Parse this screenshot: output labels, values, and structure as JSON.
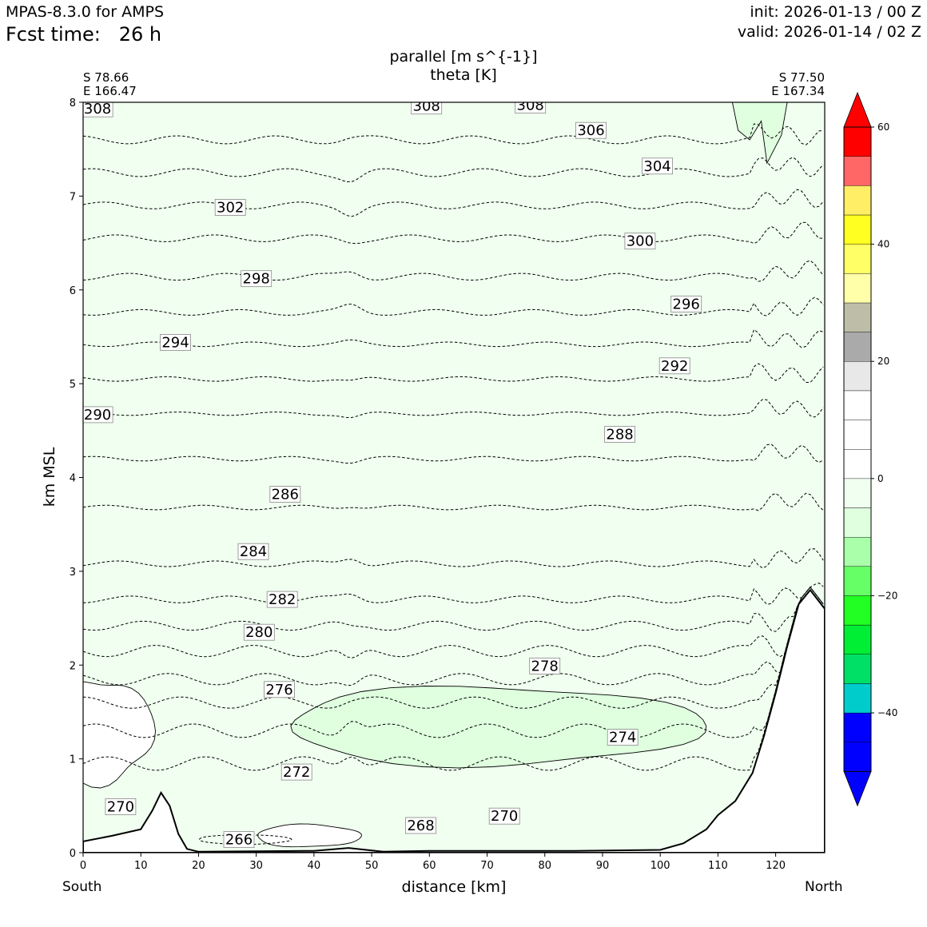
{
  "header": {
    "model": "MPAS-8.3.0 for AMPS",
    "fcst_label": "Fcst time:",
    "fcst_value": "26 h",
    "init": "init: 2026-01-13 / 00 Z",
    "valid": "valid: 2026-01-14 / 02 Z"
  },
  "chart_data": {
    "type": "cross-section",
    "title": "parallel [m s^{-1}]",
    "subtitle": "theta [K]",
    "xlabel": "distance [km]",
    "ylabel": "km MSL",
    "xlim": [
      0,
      128.5
    ],
    "ylim": [
      0,
      8
    ],
    "xticks": [
      0,
      10,
      20,
      30,
      40,
      50,
      60,
      70,
      80,
      90,
      100,
      110,
      120
    ],
    "yticks": [
      0,
      1,
      2,
      3,
      4,
      5,
      6,
      7,
      8
    ],
    "left_end": {
      "lat": "S 78.66",
      "lon": "E 166.47",
      "direction": "South"
    },
    "right_end": {
      "lat": "S 77.50",
      "lon": "E 167.34",
      "direction": "North"
    },
    "filled_field": {
      "name": "parallel wind",
      "units": "m s^-1",
      "background_level_color": "#f0fff0",
      "notes": "Mostly -5 to 0 m/s; pockets of -10 to -5 m/s near 60-110 km at 1-1.8 km and near top-right"
    },
    "colorbar": {
      "levels": [
        -55,
        -50,
        -45,
        -40,
        -35,
        -30,
        -25,
        -20,
        -15,
        -10,
        -5,
        0,
        5,
        10,
        15,
        20,
        25,
        30,
        35,
        40,
        45,
        50,
        55,
        60
      ],
      "colors": [
        "#0000ff",
        "#0000ff",
        "#00cccc",
        "#00e066",
        "#00ee33",
        "#22ff22",
        "#66ff66",
        "#aaffaa",
        "#dfffdf",
        "#f0fff0",
        "#ffffff",
        "#ffffff",
        "#ffffff",
        "#e8e8e8",
        "#aaaaaa",
        "#bebea8",
        "#ffffaa",
        "#ffff66",
        "#ffff22",
        "#ffee66",
        "#ff6666",
        "#ff0000"
      ],
      "tick_values": [
        60,
        40,
        20,
        0,
        -20,
        -40
      ],
      "tick_labels": [
        "60",
        "40",
        "20",
        "0",
        "−20",
        "−40"
      ],
      "extend_top_color": "#ff0000",
      "extend_bottom_color": "#0000ff"
    },
    "terrain_km": [
      [
        0,
        0.12
      ],
      [
        5,
        0.18
      ],
      [
        10,
        0.25
      ],
      [
        12,
        0.45
      ],
      [
        13.5,
        0.64
      ],
      [
        15,
        0.5
      ],
      [
        16.5,
        0.2
      ],
      [
        18,
        0.04
      ],
      [
        20,
        0.01
      ],
      [
        40,
        0.02
      ],
      [
        46,
        0.05
      ],
      [
        52,
        0.01
      ],
      [
        60,
        0.02
      ],
      [
        85,
        0.02
      ],
      [
        100,
        0.03
      ],
      [
        104,
        0.1
      ],
      [
        108,
        0.25
      ],
      [
        110,
        0.4
      ],
      [
        113,
        0.55
      ],
      [
        116,
        0.85
      ],
      [
        118,
        1.25
      ],
      [
        120,
        1.7
      ],
      [
        122,
        2.2
      ],
      [
        124,
        2.65
      ],
      [
        126,
        2.8
      ],
      [
        128.5,
        2.6
      ]
    ],
    "theta_levels": [
      266,
      268,
      270,
      272,
      274,
      276,
      278,
      280,
      282,
      284,
      286,
      288,
      290,
      292,
      294,
      296,
      298,
      300,
      302,
      304,
      306,
      308
    ],
    "theta_contours": [
      {
        "z": 0.95,
        "amp": 0.12
      },
      {
        "z": 1.3,
        "amp": 0.12
      },
      {
        "z": 1.6,
        "amp": 0.1
      },
      {
        "z": 1.85,
        "amp": 0.1
      },
      {
        "z": 2.15,
        "amp": 0.1
      },
      {
        "z": 2.42,
        "amp": 0.08
      },
      {
        "z": 2.7,
        "amp": 0.06
      },
      {
        "z": 3.08,
        "amp": 0.05
      },
      {
        "z": 3.68,
        "amp": 0.04
      },
      {
        "z": 4.2,
        "amp": 0.04
      },
      {
        "z": 4.68,
        "amp": 0.03
      },
      {
        "z": 5.05,
        "amp": 0.04
      },
      {
        "z": 5.42,
        "amp": 0.04
      },
      {
        "z": 5.76,
        "amp": 0.05
      },
      {
        "z": 6.14,
        "amp": 0.06
      },
      {
        "z": 6.55,
        "amp": 0.06
      },
      {
        "z": 6.9,
        "amp": 0.06
      },
      {
        "z": 7.25,
        "amp": 0.07
      },
      {
        "z": 7.6,
        "amp": 0.07
      }
    ],
    "contour_labels": [
      {
        "text": "308",
        "x": 2.5,
        "z": 7.93
      },
      {
        "text": "308",
        "x": 59.5,
        "z": 7.96
      },
      {
        "text": "308",
        "x": 77.5,
        "z": 7.97
      },
      {
        "text": "306",
        "x": 88,
        "z": 7.7
      },
      {
        "text": "304",
        "x": 99.5,
        "z": 7.32
      },
      {
        "text": "302",
        "x": 25.5,
        "z": 6.88
      },
      {
        "text": "300",
        "x": 96.5,
        "z": 6.52
      },
      {
        "text": "298",
        "x": 30,
        "z": 6.12
      },
      {
        "text": "296",
        "x": 104.5,
        "z": 5.85
      },
      {
        "text": "294",
        "x": 16,
        "z": 5.44
      },
      {
        "text": "292",
        "x": 102.5,
        "z": 5.19
      },
      {
        "text": "290",
        "x": 2.5,
        "z": 4.67
      },
      {
        "text": "288",
        "x": 93,
        "z": 4.46
      },
      {
        "text": "286",
        "x": 35,
        "z": 3.82
      },
      {
        "text": "284",
        "x": 29.5,
        "z": 3.21
      },
      {
        "text": "282",
        "x": 34.5,
        "z": 2.7
      },
      {
        "text": "280",
        "x": 30.5,
        "z": 2.35
      },
      {
        "text": "278",
        "x": 80,
        "z": 1.99
      },
      {
        "text": "276",
        "x": 34,
        "z": 1.74
      },
      {
        "text": "274",
        "x": 93.5,
        "z": 1.23
      },
      {
        "text": "272",
        "x": 37,
        "z": 0.86
      },
      {
        "text": "270",
        "x": 6.5,
        "z": 0.49
      },
      {
        "text": "270",
        "x": 73,
        "z": 0.39
      },
      {
        "text": "268",
        "x": 58.5,
        "z": 0.29
      },
      {
        "text": "266",
        "x": 27,
        "z": 0.14
      }
    ]
  }
}
